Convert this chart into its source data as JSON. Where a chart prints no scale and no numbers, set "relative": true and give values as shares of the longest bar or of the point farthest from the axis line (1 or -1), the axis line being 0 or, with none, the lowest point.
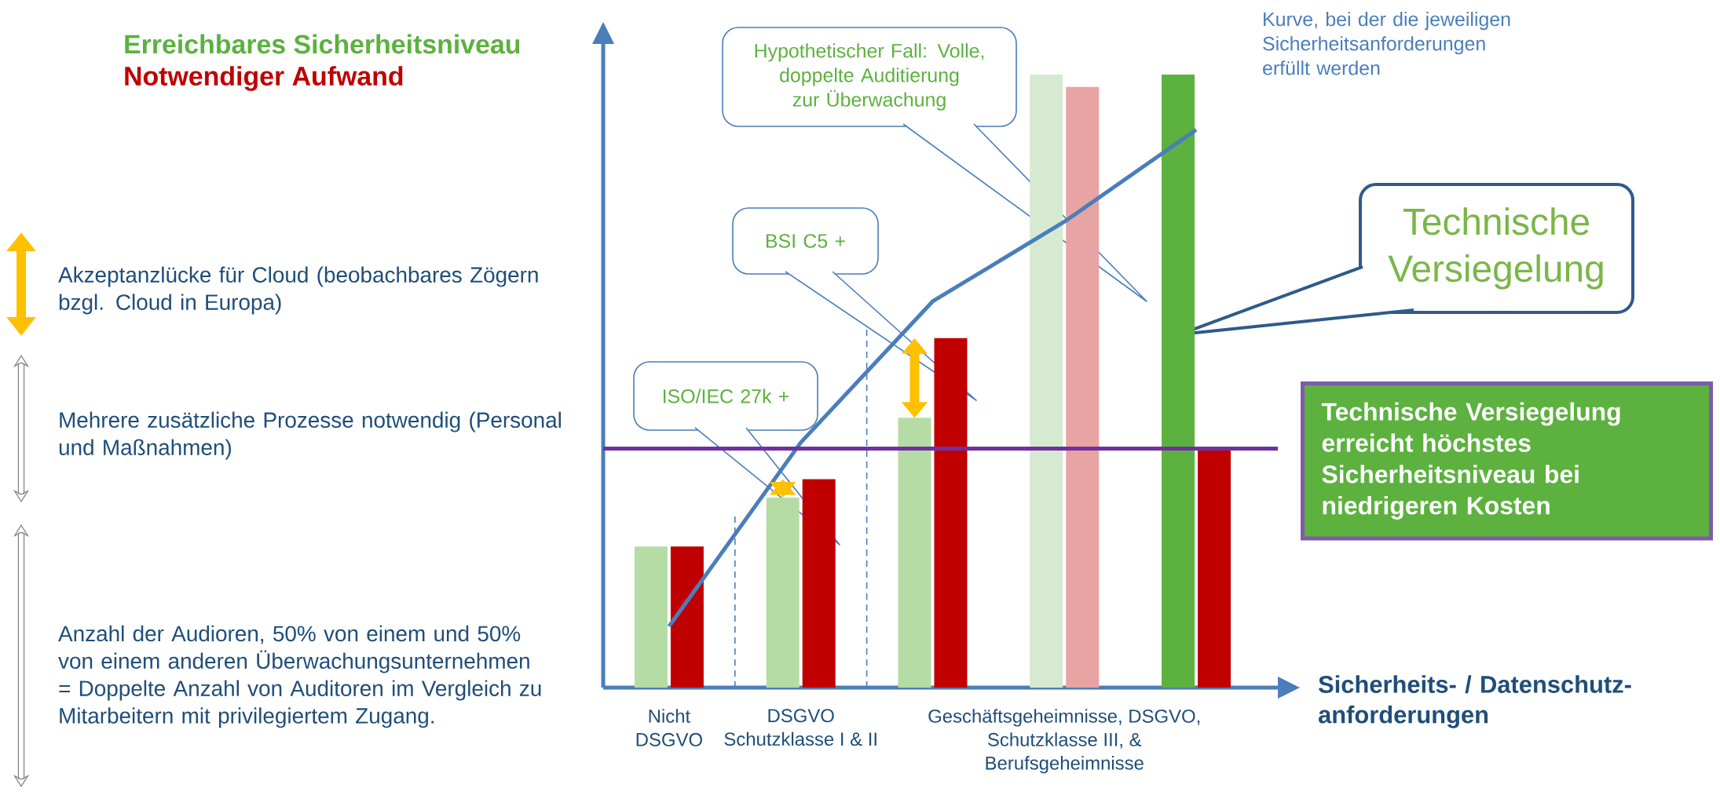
{
  "chart_data": {
    "type": "bar",
    "relative": true,
    "categories": [
      "Nicht DSGVO",
      "DSGVO Schutzklasse I & II",
      null,
      "Geschäftsgeheimnisse, DSGVO, Schutzklasse III, & Berufsgeheimnisse",
      null
    ],
    "xlabel": "Sicherheits- / Datenschutz-anforderungen",
    "series": [
      {
        "name": "Erreichbares Sicherheitsniveau",
        "color": "#5cb13f",
        "colors": [
          "#b5dca5",
          "#b5dca5",
          "#b5dca5",
          "#d5ead0",
          "#5cb13f"
        ],
        "values": [
          0.23,
          0.31,
          0.44,
          1,
          1
        ]
      },
      {
        "name": "Notwendiger Aufwand",
        "color": "#c00000",
        "colors": [
          "#c00000",
          "#c00000",
          "#c00000",
          "#e8a3a3",
          "#c00000"
        ],
        "values": [
          0.23,
          0.34,
          0.57,
          0.98,
          0.39
        ]
      },
      {
        "name": "Kurve, bei der die jeweiligen Sicherheitsanforderungen erfüllt werden",
        "type": "line",
        "color": "#4a7ebb",
        "values": [
          0.1,
          0.4,
          0.63,
          0.76,
          0.91
        ]
      }
    ],
    "ref_lines": [
      {
        "axis": "y",
        "value": 0.39,
        "color": "#7030a0"
      }
    ],
    "annotations": [
      "ISO/IEC 27k +",
      "BSI C5 +",
      "Hypothetischer Fall: Volle, doppelte Auditierung zur Überwachung",
      "Technische Versiegelung",
      "Technische Versiegelung erreicht höchstes Sicherheitsniveau bei niedrigeren Kosten",
      "Akzeptanzlücke für Cloud (beobachbares Zögern bzgl. Cloud in Europa)",
      "Mehrere zusätzliche Prozesse notwendig (Personal und Maßnahmen)",
      "Anzahl der Audioren, 50% von einem und 50% von einem anderen Überwachungsunternehmen = Doppelte Anzahl von Auditoren im Vergleich zu Mitarbeitern mit privilegiertem Zugang."
    ]
  }
}
